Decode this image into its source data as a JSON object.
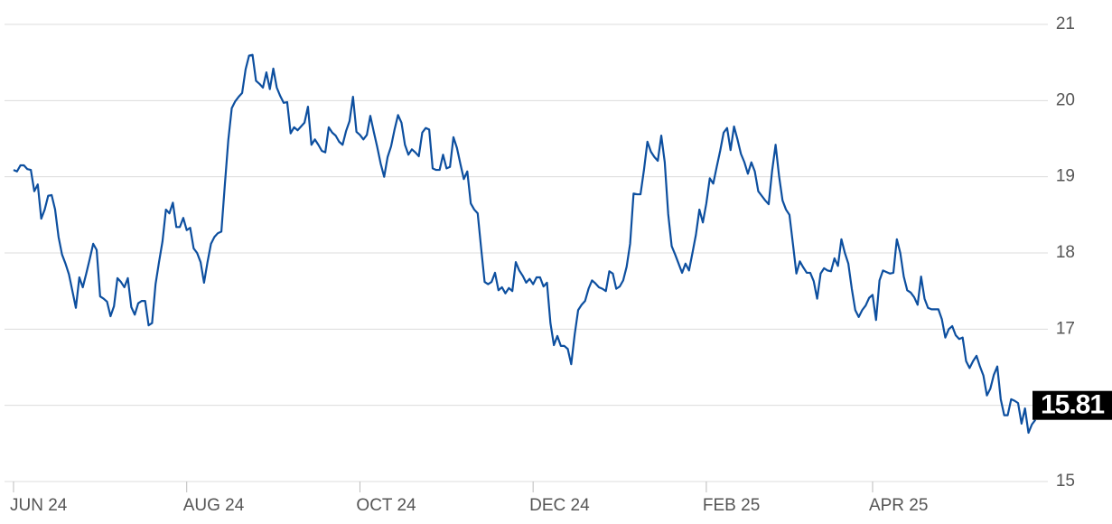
{
  "chart_data": {
    "type": "line",
    "color": "#0d4f9f",
    "values": [
      19.09,
      19.07,
      19.15,
      19.15,
      19.1,
      19.09,
      18.81,
      18.9,
      18.45,
      18.57,
      18.75,
      18.76,
      18.57,
      18.21,
      17.98,
      17.86,
      17.72,
      17.5,
      17.28,
      17.68,
      17.55,
      17.73,
      17.92,
      18.12,
      18.04,
      17.43,
      17.4,
      17.36,
      17.17,
      17.3,
      17.67,
      17.62,
      17.55,
      17.67,
      17.29,
      17.19,
      17.34,
      17.37,
      17.37,
      17.05,
      17.08,
      17.59,
      17.88,
      18.15,
      18.57,
      18.52,
      18.66,
      18.34,
      18.34,
      18.46,
      18.3,
      18.33,
      18.06,
      18.0,
      17.88,
      17.61,
      17.88,
      18.12,
      18.21,
      18.26,
      18.28,
      18.89,
      19.48,
      19.9,
      19.99,
      20.05,
      20.1,
      20.41,
      20.59,
      20.6,
      20.26,
      20.22,
      20.17,
      20.37,
      20.15,
      20.42,
      20.17,
      20.06,
      19.97,
      19.98,
      19.57,
      19.65,
      19.61,
      19.66,
      19.71,
      19.92,
      19.42,
      19.49,
      19.42,
      19.34,
      19.32,
      19.65,
      19.58,
      19.54,
      19.46,
      19.42,
      19.6,
      19.73,
      20.05,
      19.59,
      19.55,
      19.49,
      19.55,
      19.8,
      19.59,
      19.39,
      19.17,
      19.0,
      19.26,
      19.4,
      19.62,
      19.81,
      19.71,
      19.42,
      19.29,
      19.36,
      19.32,
      19.27,
      19.58,
      19.64,
      19.62,
      19.11,
      19.09,
      19.09,
      19.29,
      19.11,
      19.13,
      19.52,
      19.38,
      19.17,
      18.97,
      19.07,
      18.65,
      18.57,
      18.52,
      18.06,
      17.62,
      17.59,
      17.62,
      17.74,
      17.51,
      17.55,
      17.47,
      17.54,
      17.5,
      17.88,
      17.77,
      17.7,
      17.61,
      17.66,
      17.59,
      17.68,
      17.68,
      17.56,
      17.61,
      17.08,
      16.79,
      16.91,
      16.78,
      16.78,
      16.74,
      16.54,
      16.93,
      17.25,
      17.32,
      17.37,
      17.53,
      17.64,
      17.6,
      17.55,
      17.53,
      17.5,
      17.76,
      17.73,
      17.53,
      17.56,
      17.64,
      17.82,
      18.12,
      18.78,
      18.77,
      18.77,
      19.09,
      19.46,
      19.33,
      19.26,
      19.21,
      19.54,
      19.19,
      18.51,
      18.09,
      17.98,
      17.86,
      17.74,
      17.86,
      17.77,
      18.0,
      18.24,
      18.57,
      18.4,
      18.65,
      18.98,
      18.91,
      19.13,
      19.34,
      19.58,
      19.64,
      19.35,
      19.66,
      19.49,
      19.3,
      19.19,
      19.04,
      19.19,
      19.07,
      18.81,
      18.75,
      18.69,
      18.64,
      19.08,
      19.42,
      19.01,
      18.69,
      18.57,
      18.5,
      18.12,
      17.73,
      17.89,
      17.81,
      17.74,
      17.74,
      17.63,
      17.4,
      17.73,
      17.8,
      17.77,
      17.76,
      17.93,
      17.83,
      18.18,
      18.0,
      17.86,
      17.53,
      17.25,
      17.16,
      17.25,
      17.31,
      17.41,
      17.45,
      17.12,
      17.64,
      17.77,
      17.75,
      17.73,
      17.74,
      18.18,
      18.0,
      17.69,
      17.51,
      17.48,
      17.42,
      17.32,
      17.69,
      17.4,
      17.28,
      17.26,
      17.26,
      17.26,
      17.13,
      16.89,
      17.0,
      17.04,
      16.92,
      16.87,
      16.89,
      16.58,
      16.49,
      16.58,
      16.65,
      16.51,
      16.39,
      16.13,
      16.22,
      16.4,
      16.51,
      16.08,
      15.87,
      15.87,
      16.08,
      16.06,
      16.03,
      15.76,
      15.96,
      15.64,
      15.75,
      15.81
    ],
    "xlim": [
      -2.6,
      298.6
    ],
    "xticks": [
      {
        "value": 0,
        "label": "JUN 24"
      },
      {
        "value": 50,
        "label": "AUG 24"
      },
      {
        "value": 100,
        "label": "OCT 24"
      },
      {
        "value": 150,
        "label": "DEC 24"
      },
      {
        "value": 200,
        "label": "FEB 25"
      },
      {
        "value": 248,
        "label": "APR 25"
      }
    ],
    "ylim": [
      15,
      21
    ],
    "yticks": [
      15,
      16,
      17,
      18,
      19,
      20,
      21
    ],
    "grid": true
  }
}
